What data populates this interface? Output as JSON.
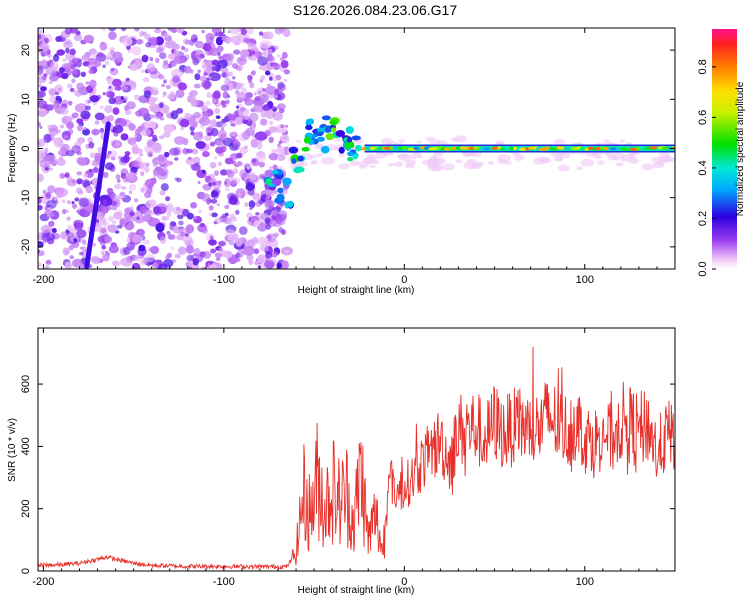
{
  "title": "S126.2026.084.23.06.G17",
  "colors": {
    "spectrogram_low": "#9a3cf0",
    "snr_line": "#e8302a"
  },
  "chart_data": [
    {
      "type": "heatmap",
      "name": "spectrogram",
      "xlabel": "Height of straight line (km)",
      "ylabel": "Frequency (Hz)",
      "xlim": [
        -203,
        150
      ],
      "ylim": [
        -24.5,
        24.5
      ],
      "xticks": [
        -200,
        -100,
        0,
        100
      ],
      "yticks": [
        -20,
        -10,
        0,
        10,
        20
      ],
      "noise_region_km": [
        -203,
        -65
      ],
      "slanted_trace": {
        "x_start": -176,
        "y_start": -24,
        "x_end": -164,
        "y_end": 5
      },
      "scatter_clusters": [
        {
          "x": -72,
          "y": -7,
          "amp": 0.45
        },
        {
          "x": -66,
          "y": -9,
          "amp": 0.35
        },
        {
          "x": -58,
          "y": -2,
          "amp": 0.5
        },
        {
          "x": -52,
          "y": 3,
          "amp": 0.5
        },
        {
          "x": -45,
          "y": 2,
          "amp": 0.45
        },
        {
          "x": -40,
          "y": 4,
          "amp": 0.55
        },
        {
          "x": -33,
          "y": 2,
          "amp": 0.5
        },
        {
          "x": -28,
          "y": 0,
          "amp": 0.55
        }
      ],
      "carrier_line": {
        "x_start": -22,
        "x_end": 150,
        "frequency_hz": 0.0,
        "amplitude_range": [
          0.3,
          0.9
        ]
      },
      "colorbar": {
        "label": "Normalized spectral amplitude",
        "range": [
          0,
          0.95
        ],
        "ticks": [
          0.0,
          0.2,
          0.4,
          0.6,
          0.8
        ]
      }
    },
    {
      "type": "line",
      "name": "snr",
      "xlabel": "Height of straight line (km)",
      "ylabel": "SNR (10 * v/v)",
      "xlim": [
        -203,
        150
      ],
      "ylim": [
        0,
        780
      ],
      "xticks": [
        -200,
        -100,
        0,
        100
      ],
      "yticks": [
        0,
        200,
        400,
        600
      ],
      "series": [
        {
          "name": "SNR",
          "x": [
            -203,
            -190,
            -180,
            -172,
            -165,
            -158,
            -150,
            -140,
            -120,
            -100,
            -80,
            -65,
            -60,
            -56,
            -52,
            -48,
            -44,
            -40,
            -36,
            -32,
            -28,
            -24,
            -20,
            -16,
            -12,
            -8,
            -4,
            0,
            5,
            10,
            15,
            20,
            25,
            30,
            35,
            40,
            45,
            50,
            55,
            60,
            65,
            70,
            75,
            80,
            85,
            90,
            95,
            100,
            105,
            110,
            115,
            120,
            125,
            130,
            135,
            140,
            145,
            150
          ],
          "values": [
            18,
            20,
            25,
            35,
            45,
            35,
            25,
            18,
            15,
            15,
            14,
            14,
            60,
            250,
            180,
            300,
            200,
            270,
            220,
            250,
            150,
            330,
            100,
            180,
            60,
            300,
            250,
            270,
            300,
            350,
            380,
            420,
            350,
            450,
            460,
            460,
            420,
            480,
            440,
            460,
            470,
            450,
            460,
            500,
            470,
            450,
            480,
            430,
            410,
            450,
            420,
            480,
            470,
            450,
            470,
            380,
            430,
            440
          ]
        }
      ]
    }
  ]
}
